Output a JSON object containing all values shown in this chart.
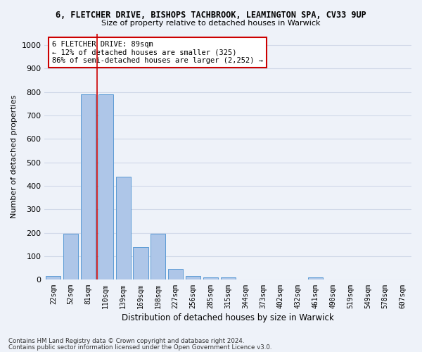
{
  "title_line1": "6, FLETCHER DRIVE, BISHOPS TACHBROOK, LEAMINGTON SPA, CV33 9UP",
  "title_line2": "Size of property relative to detached houses in Warwick",
  "xlabel": "Distribution of detached houses by size in Warwick",
  "ylabel": "Number of detached properties",
  "categories": [
    "22sqm",
    "52sqm",
    "81sqm",
    "110sqm",
    "139sqm",
    "169sqm",
    "198sqm",
    "227sqm",
    "256sqm",
    "285sqm",
    "315sqm",
    "344sqm",
    "373sqm",
    "402sqm",
    "432sqm",
    "461sqm",
    "490sqm",
    "519sqm",
    "549sqm",
    "578sqm",
    "607sqm"
  ],
  "values": [
    15,
    195,
    790,
    790,
    440,
    140,
    195,
    45,
    15,
    10,
    10,
    0,
    0,
    0,
    0,
    10,
    0,
    0,
    0,
    0,
    0
  ],
  "bar_color": "#aec6e8",
  "bar_edge_color": "#5b9bd5",
  "grid_color": "#d0d8e8",
  "vline_x": 2.5,
  "vline_color": "#cc0000",
  "annotation_text": "6 FLETCHER DRIVE: 89sqm\n← 12% of detached houses are smaller (325)\n86% of semi-detached houses are larger (2,252) →",
  "annotation_box_color": "#ffffff",
  "annotation_box_edge": "#cc0000",
  "ylim": [
    0,
    1050
  ],
  "yticks": [
    0,
    100,
    200,
    300,
    400,
    500,
    600,
    700,
    800,
    900,
    1000
  ],
  "footer_line1": "Contains HM Land Registry data © Crown copyright and database right 2024.",
  "footer_line2": "Contains public sector information licensed under the Open Government Licence v3.0.",
  "background_color": "#eef2f9"
}
